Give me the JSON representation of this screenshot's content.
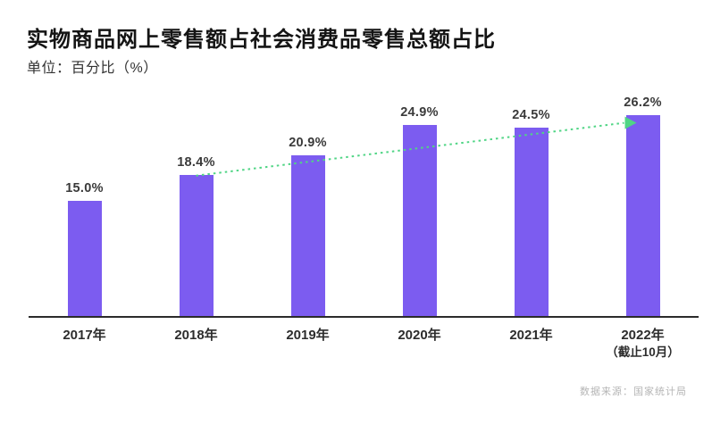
{
  "title": "实物商品网上零售额占社会消费品零售总额占比",
  "subtitle": "单位：百分比（%）",
  "source_note": "数据来源：国家统计局",
  "colors": {
    "bar": "#7c5cf0",
    "trend": "#50d585",
    "title_text": "#141414",
    "value_label": "#3a3a3a",
    "axis_line": "#2b2b2b",
    "source_text": "#b5b5b5"
  },
  "chart_data": {
    "type": "bar",
    "title": "实物商品网上零售额占社会消费品零售总额占比",
    "ylabel": "百分比（%）",
    "xlabel": "",
    "ylim": [
      0,
      29
    ],
    "grid": false,
    "legend": "none",
    "categories": [
      "2017年",
      "2018年",
      "2019年",
      "2020年",
      "2021年",
      "2022年"
    ],
    "category_sublabels": [
      "",
      "",
      "",
      "",
      "",
      "（截止10月）"
    ],
    "values": [
      15.0,
      18.4,
      20.9,
      24.9,
      24.5,
      26.2
    ],
    "value_labels": [
      "15.0%",
      "18.4%",
      "20.9%",
      "24.9%",
      "24.5%",
      "26.2%"
    ],
    "trend_line": {
      "style": "dotted",
      "arrow": true,
      "from_index": 1,
      "to_index": 5
    }
  }
}
